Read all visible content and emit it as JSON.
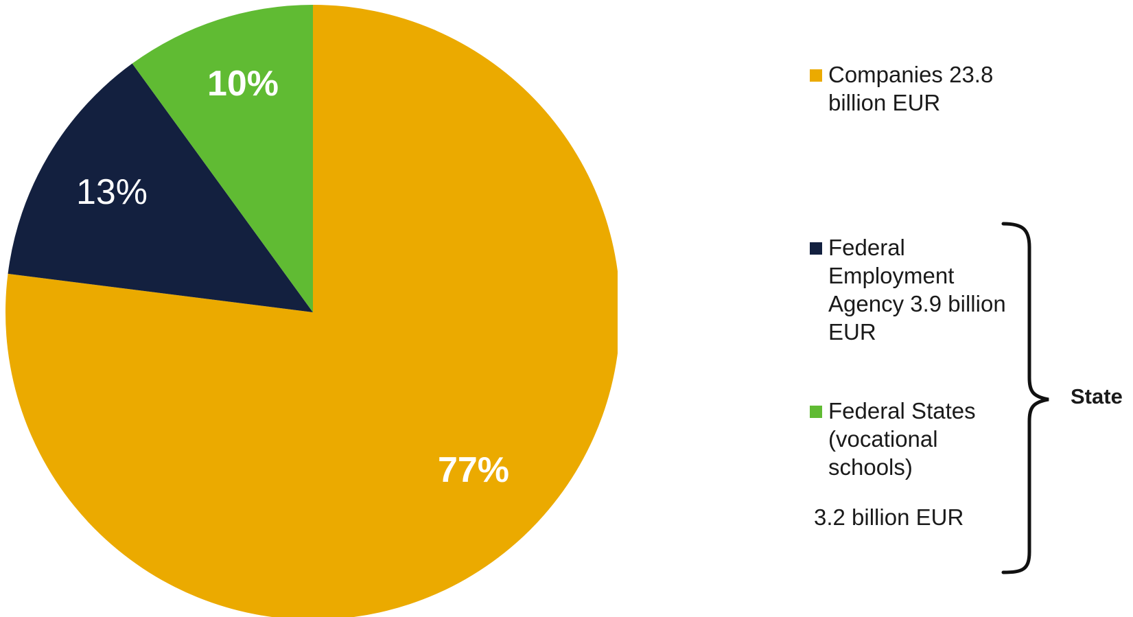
{
  "chart_data": {
    "type": "pie",
    "slices": [
      {
        "label": "Companies 23.8\nbillion EUR",
        "value": 77,
        "display": "77%",
        "color": "#EBAA00"
      },
      {
        "label": "Federal\nEmployment\nAgency 3.9 billion\nEUR",
        "value": 13,
        "display": "13%",
        "color": "#13203F"
      },
      {
        "label": "Federal States\n(vocational\nschools)",
        "value": 10,
        "display": "10%",
        "color": "#60BB33"
      }
    ],
    "federal_states_amount": "3.2 billion EUR",
    "group_label": "State"
  }
}
